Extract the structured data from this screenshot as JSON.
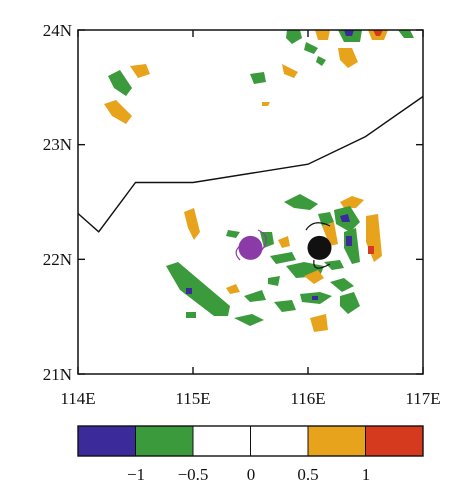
{
  "map": {
    "lat_labels": [
      "24N",
      "23N",
      "22N",
      "21N"
    ],
    "lon_labels": [
      "114E",
      "115E",
      "116E",
      "117E"
    ],
    "lon_range": [
      114,
      117
    ],
    "lat_range": [
      21,
      24
    ],
    "coastline": [
      [
        114,
        22.4
      ],
      [
        114.18,
        22.24
      ],
      [
        114.5,
        22.67
      ],
      [
        115,
        22.67
      ],
      [
        116,
        22.83
      ],
      [
        116.5,
        23.07
      ],
      [
        117,
        23.42
      ]
    ],
    "markers": [
      {
        "lon": 115.5,
        "lat": 22.1,
        "color": "#8a3ba8"
      },
      {
        "lon": 116.1,
        "lat": 22.1,
        "color": "#111111"
      }
    ]
  },
  "colorbar": {
    "tick_labels": [
      "−1",
      "−0.5",
      "0",
      "0.5",
      "1"
    ],
    "colors": [
      "#3a2a9a",
      "#3b9a3b",
      "#ffffff",
      "#ffffff",
      "#e8a31c",
      "#d63a1e"
    ]
  }
}
